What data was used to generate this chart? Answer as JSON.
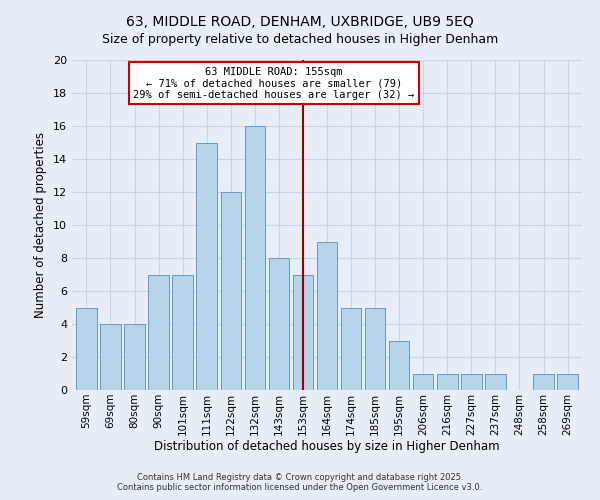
{
  "title": "63, MIDDLE ROAD, DENHAM, UXBRIDGE, UB9 5EQ",
  "subtitle": "Size of property relative to detached houses in Higher Denham",
  "xlabel": "Distribution of detached houses by size in Higher Denham",
  "ylabel": "Number of detached properties",
  "bar_labels": [
    "59sqm",
    "69sqm",
    "80sqm",
    "90sqm",
    "101sqm",
    "111sqm",
    "122sqm",
    "132sqm",
    "143sqm",
    "153sqm",
    "164sqm",
    "174sqm",
    "185sqm",
    "195sqm",
    "206sqm",
    "216sqm",
    "227sqm",
    "237sqm",
    "248sqm",
    "258sqm",
    "269sqm"
  ],
  "bar_values": [
    5,
    4,
    4,
    7,
    7,
    15,
    12,
    16,
    8,
    7,
    9,
    5,
    5,
    3,
    1,
    1,
    1,
    1,
    0,
    1,
    1
  ],
  "bar_color": "#b8d4ea",
  "bar_edge_color": "#6699cc",
  "highlight_line_index": 9,
  "highlight_line_color": "#990000",
  "annotation_title": "63 MIDDLE ROAD: 155sqm",
  "annotation_line1": "← 71% of detached houses are smaller (79)",
  "annotation_line2": "29% of semi-detached houses are larger (32) →",
  "annotation_box_color": "#ffffff",
  "annotation_box_edge": "#cc0000",
  "ylim": [
    0,
    20
  ],
  "yticks": [
    0,
    2,
    4,
    6,
    8,
    10,
    12,
    14,
    16,
    18,
    20
  ],
  "bg_color": "#e8eef8",
  "plot_bg_color": "#e8eef8",
  "grid_color": "#c8d4e8",
  "footer_line1": "Contains HM Land Registry data © Crown copyright and database right 2025.",
  "footer_line2": "Contains public sector information licensed under the Open Government Licence v3.0.",
  "title_fontsize": 10,
  "subtitle_fontsize": 9,
  "axis_label_fontsize": 8.5,
  "tick_fontsize": 7.5
}
